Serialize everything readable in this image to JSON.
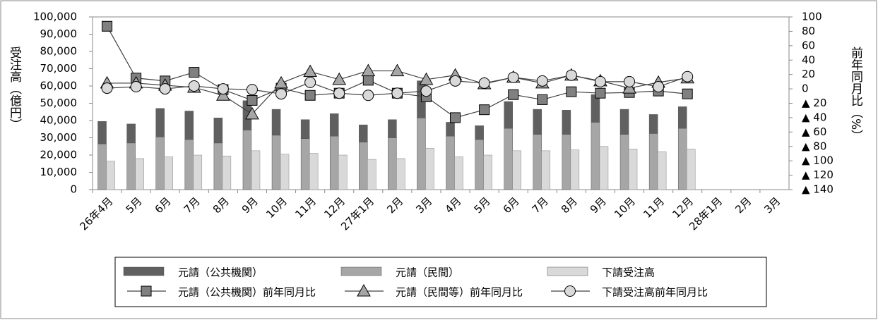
{
  "chart_data": {
    "type": "bar_line",
    "y_label": "受注高（億円）",
    "y2_label": "前年同月比（%）",
    "categories": [
      "26年4月",
      "5月",
      "6月",
      "7月",
      "8月",
      "9月",
      "10月",
      "11月",
      "12月",
      "27年1月",
      "2月",
      "3月",
      "4月",
      "5月",
      "6月",
      "7月",
      "8月",
      "9月",
      "10月",
      "11月",
      "12月",
      "28年1月",
      "2月",
      "3月"
    ],
    "ylim": [
      0,
      100000
    ],
    "yticks": [
      0,
      {
        "value": 10000,
        "label": "10,000"
      },
      {
        "value": 20000,
        "label": "20,000"
      },
      {
        "value": 30000,
        "label": "30,000"
      },
      {
        "value": 40000,
        "label": "40,000"
      },
      {
        "value": 50000,
        "label": "50,000"
      },
      {
        "value": 60000,
        "label": "60,000"
      },
      {
        "value": 70000,
        "label": "70,000"
      },
      {
        "value": 80000,
        "label": "80,000"
      },
      {
        "value": 90000,
        "label": "90,000"
      },
      {
        "value": 100000,
        "label": "100,000"
      }
    ],
    "y2lim": [
      -140,
      100
    ],
    "y2ticks": [
      100,
      80,
      60,
      40,
      20,
      0,
      {
        "value": -20,
        "label": "▲ 20"
      },
      {
        "value": -40,
        "label": "▲ 40"
      },
      {
        "value": -60,
        "label": "▲ 60"
      },
      {
        "value": -80,
        "label": "▲ 80"
      },
      {
        "value": -100,
        "label": "▲ 100"
      },
      {
        "value": -120,
        "label": "▲ 120"
      },
      {
        "value": -140,
        "label": "▲ 140"
      }
    ],
    "series": [
      {
        "name": "元請（公共機関）",
        "mark": "stacked_bar",
        "color": "#606060",
        "values": [
          13000,
          11000,
          16500,
          16500,
          14500,
          17000,
          15000,
          11000,
          13000,
          10000,
          10500,
          21500,
          8000,
          8000,
          15500,
          14500,
          14000,
          16000,
          14500,
          11000,
          12500,
          null,
          null,
          null
        ]
      },
      {
        "name": "元請（民間）",
        "mark": "stacked_bar",
        "color": "#a6a6a6",
        "values": [
          26500,
          27000,
          30500,
          29000,
          27000,
          34500,
          31500,
          29500,
          31000,
          27500,
          30000,
          41500,
          31000,
          29000,
          35500,
          32000,
          32000,
          39000,
          32000,
          32500,
          35500,
          null,
          null,
          null
        ]
      },
      {
        "name": "下請受注高",
        "mark": "bar",
        "color": "#d9d9d9",
        "values": [
          16500,
          18000,
          19000,
          20000,
          19500,
          22500,
          20500,
          21000,
          20000,
          17500,
          18000,
          24000,
          19000,
          20000,
          22500,
          22500,
          23000,
          25000,
          23500,
          22000,
          23500,
          null,
          null,
          null
        ]
      },
      {
        "name": "元請（公共機関）前年同月比",
        "mark": "line",
        "marker": "square",
        "axis": "y2",
        "color": "#808080",
        "values": [
          87,
          15,
          11,
          23,
          -1,
          -16,
          1,
          -9,
          -6,
          12,
          -6,
          -11,
          -40,
          -29,
          -8,
          -15,
          -4,
          -6,
          -5,
          -3,
          -7,
          null,
          null,
          null
        ]
      },
      {
        "name": "元請（民間等）前年同月比",
        "mark": "line",
        "marker": "triangle",
        "axis": "y2",
        "color": "#a6a6a6",
        "values": [
          8,
          8,
          5,
          2,
          -9,
          -35,
          8,
          24,
          13,
          25,
          25,
          13,
          19,
          7,
          16,
          8,
          19,
          11,
          1,
          9,
          15,
          null,
          null,
          null
        ]
      },
      {
        "name": "下請受注高前年同月比",
        "mark": "line",
        "marker": "circle",
        "axis": "y2",
        "color": "#d9d9d9",
        "values": [
          1,
          3,
          0,
          4,
          0,
          -1,
          -7,
          9,
          -6,
          -9,
          -6,
          -3,
          11,
          8,
          16,
          11,
          19,
          10,
          10,
          3,
          17,
          null,
          null,
          null
        ]
      }
    ]
  }
}
